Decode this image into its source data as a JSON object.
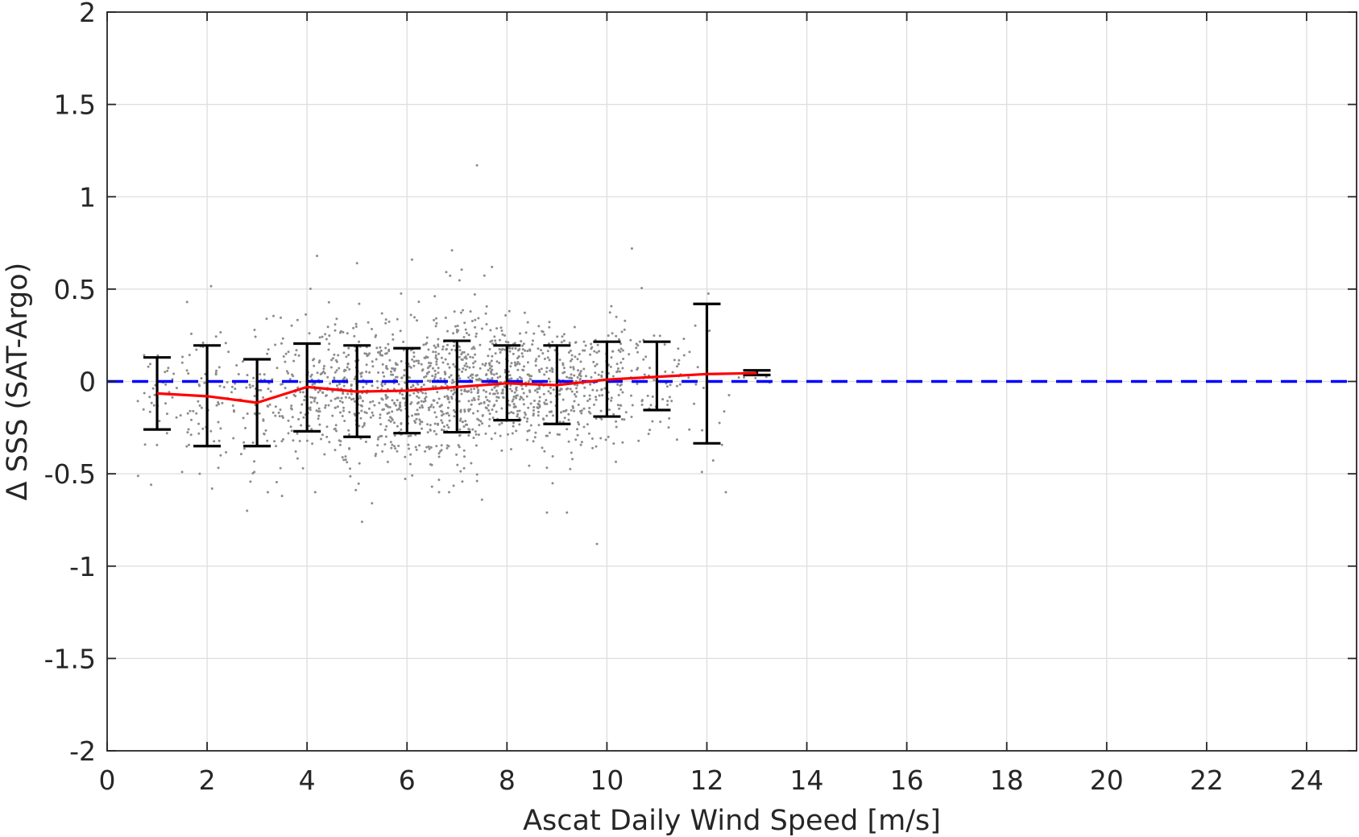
{
  "chart_data": {
    "type": "scatter",
    "xlabel": "Ascat Daily Wind Speed [m/s]",
    "ylabel": "Δ SSS (SAT-Argo)",
    "xlim": [
      0,
      25
    ],
    "ylim": [
      -2,
      2
    ],
    "xticks": [
      0,
      2,
      4,
      6,
      8,
      10,
      12,
      14,
      16,
      18,
      20,
      22,
      24
    ],
    "yticks": [
      -2,
      -1.5,
      -1,
      -0.5,
      0,
      0.5,
      1,
      1.5,
      2
    ],
    "xtick_labels": [
      "0",
      "2",
      "4",
      "6",
      "8",
      "10",
      "12",
      "14",
      "16",
      "18",
      "20",
      "22",
      "24"
    ],
    "ytick_labels": [
      "-2",
      "-1.5",
      "-1",
      "-0.5",
      "0",
      "0.5",
      "1",
      "1.5",
      "2"
    ],
    "grid": true,
    "colors": {
      "scatter": "#8c8c8c",
      "mean_line": "#ff0000",
      "zero_line": "#0000ff",
      "error_bars": "#000000"
    },
    "reference_line": {
      "y": 0,
      "style": "dashed"
    },
    "mean_line": {
      "x": [
        1,
        2,
        3,
        4,
        5,
        6,
        7,
        8,
        9,
        10,
        11,
        12,
        13
      ],
      "y": [
        -0.065,
        -0.08,
        -0.115,
        -0.03,
        -0.055,
        -0.05,
        -0.03,
        -0.01,
        -0.02,
        0.01,
        0.025,
        0.04,
        0.045
      ]
    },
    "error_bars": [
      {
        "x": 1,
        "upper": 0.13,
        "lower": -0.26
      },
      {
        "x": 2,
        "upper": 0.195,
        "lower": -0.35
      },
      {
        "x": 3,
        "upper": 0.12,
        "lower": -0.35
      },
      {
        "x": 4,
        "upper": 0.205,
        "lower": -0.27
      },
      {
        "x": 5,
        "upper": 0.195,
        "lower": -0.3
      },
      {
        "x": 6,
        "upper": 0.18,
        "lower": -0.28
      },
      {
        "x": 7,
        "upper": 0.22,
        "lower": -0.275
      },
      {
        "x": 8,
        "upper": 0.195,
        "lower": -0.21
      },
      {
        "x": 9,
        "upper": 0.195,
        "lower": -0.23
      },
      {
        "x": 10,
        "upper": 0.215,
        "lower": -0.19
      },
      {
        "x": 11,
        "upper": 0.215,
        "lower": -0.155
      },
      {
        "x": 12,
        "upper": 0.42,
        "lower": -0.335
      },
      {
        "x": 13,
        "upper": 0.06,
        "lower": 0.035
      }
    ],
    "scatter_bins": [
      {
        "x_min": 0.6,
        "x_max": 1.5,
        "mean": -0.07,
        "sd": 0.16,
        "count": 35
      },
      {
        "x_min": 1.5,
        "x_max": 2.5,
        "mean": -0.08,
        "sd": 0.2,
        "count": 60
      },
      {
        "x_min": 2.5,
        "x_max": 3.5,
        "mean": -0.1,
        "sd": 0.19,
        "count": 80
      },
      {
        "x_min": 3.5,
        "x_max": 4.5,
        "mean": -0.03,
        "sd": 0.19,
        "count": 140
      },
      {
        "x_min": 4.5,
        "x_max": 5.5,
        "mean": -0.05,
        "sd": 0.2,
        "count": 200
      },
      {
        "x_min": 5.5,
        "x_max": 6.5,
        "mean": -0.05,
        "sd": 0.19,
        "count": 250
      },
      {
        "x_min": 6.5,
        "x_max": 7.5,
        "mean": -0.03,
        "sd": 0.2,
        "count": 280
      },
      {
        "x_min": 7.5,
        "x_max": 8.5,
        "mean": -0.01,
        "sd": 0.17,
        "count": 250
      },
      {
        "x_min": 8.5,
        "x_max": 9.5,
        "mean": -0.02,
        "sd": 0.17,
        "count": 200
      },
      {
        "x_min": 9.5,
        "x_max": 10.5,
        "mean": 0.01,
        "sd": 0.16,
        "count": 130
      },
      {
        "x_min": 10.5,
        "x_max": 11.5,
        "mean": 0.025,
        "sd": 0.15,
        "count": 60
      },
      {
        "x_min": 11.5,
        "x_max": 12.5,
        "mean": 0.04,
        "sd": 0.2,
        "count": 20
      },
      {
        "x_min": 12.5,
        "x_max": 13.3,
        "mean": 0.045,
        "sd": 0.03,
        "count": 6
      }
    ],
    "outliers": [
      {
        "x": 7.4,
        "y": 1.17
      },
      {
        "x": 4.2,
        "y": 0.68
      },
      {
        "x": 5.0,
        "y": 0.64
      },
      {
        "x": 6.1,
        "y": 0.66
      },
      {
        "x": 10.5,
        "y": 0.72
      },
      {
        "x": 6.9,
        "y": 0.71
      },
      {
        "x": 1.6,
        "y": 0.43
      },
      {
        "x": 1.5,
        "y": -0.49
      },
      {
        "x": 2.1,
        "y": -0.58
      },
      {
        "x": 2.8,
        "y": -0.7
      },
      {
        "x": 3.5,
        "y": -0.62
      },
      {
        "x": 5.1,
        "y": -0.76
      },
      {
        "x": 5.3,
        "y": -0.66
      },
      {
        "x": 7.5,
        "y": -0.64
      },
      {
        "x": 8.8,
        "y": -0.71
      },
      {
        "x": 9.2,
        "y": -0.71
      },
      {
        "x": 9.8,
        "y": -0.88
      },
      {
        "x": 11.9,
        "y": -0.49
      },
      {
        "x": 6.5,
        "y": -0.57
      },
      {
        "x": 7.7,
        "y": 0.62
      }
    ]
  }
}
